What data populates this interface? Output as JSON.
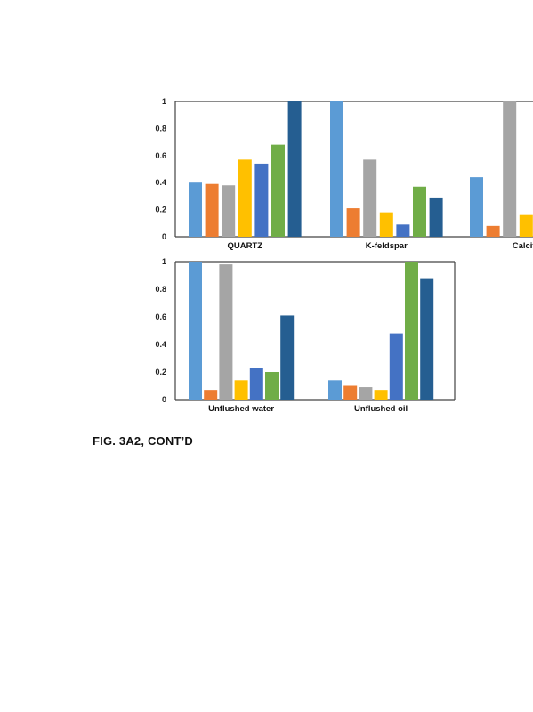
{
  "caption": "FIG. 3A2, CONT’D",
  "chart_data": [
    {
      "type": "bar",
      "categories": [
        "QUARTZ",
        "K-feldspar",
        "Calcite"
      ],
      "ylim": [
        0,
        1
      ],
      "yticks": [
        0,
        0.2,
        0.4,
        0.6,
        0.8,
        1
      ],
      "series": [
        {
          "color": "#5b9bd5",
          "values": [
            0.4,
            1.0,
            0.44
          ]
        },
        {
          "color": "#ed7d31",
          "values": [
            0.39,
            0.21,
            0.08
          ]
        },
        {
          "color": "#a5a5a5",
          "values": [
            0.38,
            0.57,
            1.0
          ]
        },
        {
          "color": "#ffc000",
          "values": [
            0.57,
            0.18,
            0.16
          ]
        },
        {
          "color": "#4472c4",
          "values": [
            0.54,
            0.09,
            null
          ]
        },
        {
          "color": "#70ad47",
          "values": [
            0.68,
            0.37,
            null
          ]
        },
        {
          "color": "#255e91",
          "values": [
            1.0,
            0.29,
            null
          ]
        }
      ],
      "grid": false,
      "legend": "none"
    },
    {
      "type": "bar",
      "categories": [
        "Unflushed water",
        "Unflushed oil"
      ],
      "ylim": [
        0,
        1
      ],
      "yticks": [
        0,
        0.2,
        0.4,
        0.6,
        0.8,
        1
      ],
      "series": [
        {
          "color": "#5b9bd5",
          "values": [
            1.0,
            0.14
          ]
        },
        {
          "color": "#ed7d31",
          "values": [
            0.07,
            0.1
          ]
        },
        {
          "color": "#a5a5a5",
          "values": [
            0.98,
            0.09
          ]
        },
        {
          "color": "#ffc000",
          "values": [
            0.14,
            0.07
          ]
        },
        {
          "color": "#4472c4",
          "values": [
            0.23,
            0.48
          ]
        },
        {
          "color": "#70ad47",
          "values": [
            0.2,
            1.0
          ]
        },
        {
          "color": "#255e91",
          "values": [
            0.61,
            0.88
          ]
        }
      ],
      "grid": false,
      "legend": "none"
    }
  ]
}
